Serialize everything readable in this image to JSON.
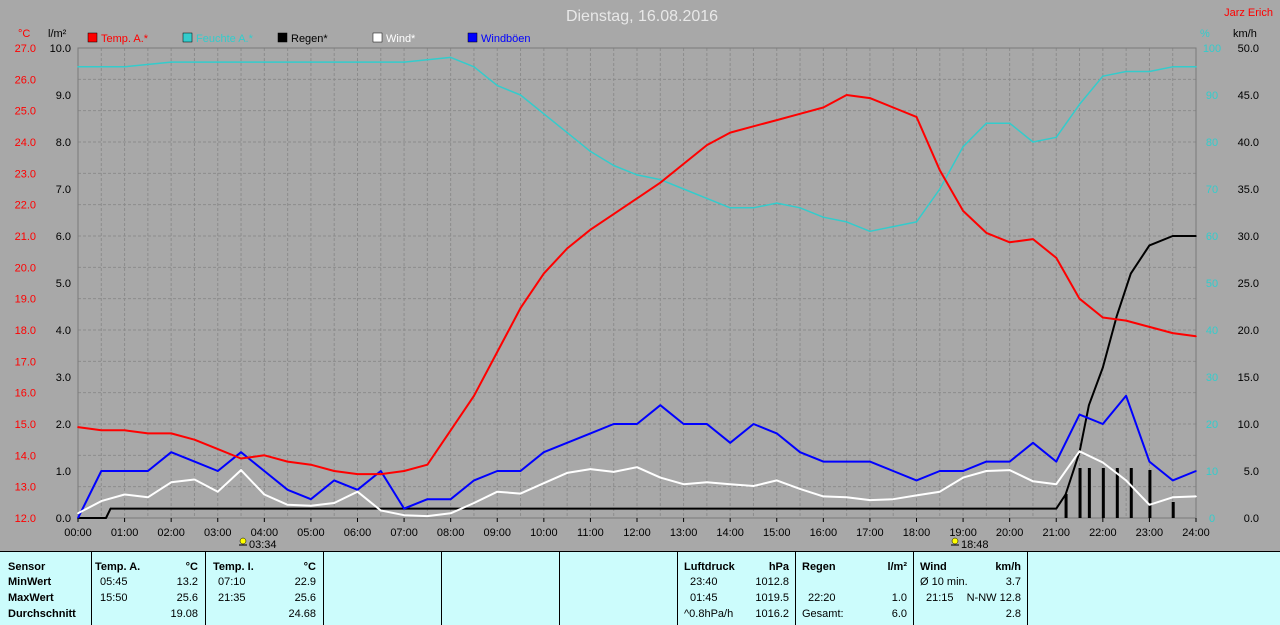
{
  "title": "Dienstag, 16.08.2016",
  "station": "Jarz Erich",
  "colors": {
    "background": "#a8a8a8",
    "grid": "#8c8c8c",
    "temperature": "#ff0000",
    "humidity": "#33cccc",
    "rain": "#000000",
    "wind": "#ffffff",
    "gusts": "#0000ff",
    "panel": "#ccfcfc"
  },
  "icons": {
    "sunrise": "sunrise-icon",
    "sunset": "sunset-icon"
  },
  "sunrise": {
    "time": "03:34",
    "hour": 3.57
  },
  "sunset": {
    "time": "18:48",
    "hour": 18.8
  },
  "chart_data": {
    "type": "line",
    "title": "Dienstag, 16.08.2016",
    "grid": true,
    "legend_position": "top-left",
    "x_ticks": [
      "00:00",
      "01:00",
      "02:00",
      "03:00",
      "04:00",
      "05:00",
      "06:00",
      "07:00",
      "08:00",
      "09:00",
      "10:00",
      "11:00",
      "12:00",
      "13:00",
      "14:00",
      "15:00",
      "16:00",
      "17:00",
      "18:00",
      "19:00",
      "20:00",
      "21:00",
      "22:00",
      "23:00",
      "24:00"
    ],
    "axes": {
      "temp": {
        "unit": "°C",
        "range": [
          12.0,
          27.0
        ],
        "ticks": [
          "12.0",
          "13.0",
          "14.0",
          "15.0",
          "16.0",
          "17.0",
          "18.0",
          "19.0",
          "20.0",
          "21.0",
          "22.0",
          "23.0",
          "24.0",
          "25.0",
          "26.0",
          "27.0"
        ]
      },
      "rain": {
        "unit": "l/m²",
        "range": [
          0.0,
          10.0
        ],
        "ticks": [
          "0.0",
          "1.0",
          "2.0",
          "3.0",
          "4.0",
          "5.0",
          "6.0",
          "7.0",
          "8.0",
          "9.0",
          "10.0"
        ]
      },
      "humidity": {
        "unit": "%",
        "range": [
          0,
          100
        ],
        "ticks": [
          "0",
          "10",
          "20",
          "30",
          "40",
          "50",
          "60",
          "70",
          "80",
          "90",
          "100"
        ]
      },
      "wind": {
        "unit": "km/h",
        "range": [
          0,
          50
        ],
        "ticks": [
          "0.0",
          "5.0",
          "10.0",
          "15.0",
          "20.0",
          "25.0",
          "30.0",
          "35.0",
          "40.0",
          "45.0",
          "50.0"
        ]
      }
    },
    "series": [
      {
        "name": "Temp. A.*",
        "axis": "temp",
        "color": "#ff0000",
        "x": [
          0,
          0.5,
          1,
          1.5,
          2,
          2.5,
          3,
          3.5,
          4,
          4.5,
          5,
          5.5,
          6,
          6.5,
          7,
          7.5,
          8,
          8.5,
          9,
          9.5,
          10,
          10.5,
          11,
          11.5,
          12,
          12.5,
          13,
          13.5,
          14,
          14.5,
          15,
          15.5,
          16,
          16.5,
          17,
          17.5,
          18,
          18.5,
          19,
          19.5,
          20,
          20.5,
          21,
          21.5,
          22,
          22.5,
          23,
          23.5,
          24
        ],
        "values": [
          14.9,
          14.8,
          14.8,
          14.7,
          14.7,
          14.5,
          14.2,
          13.9,
          14.0,
          13.8,
          13.7,
          13.5,
          13.4,
          13.4,
          13.5,
          13.7,
          14.8,
          15.9,
          17.3,
          18.7,
          19.8,
          20.6,
          21.2,
          21.7,
          22.2,
          22.7,
          23.3,
          23.9,
          24.3,
          24.5,
          24.7,
          24.9,
          25.1,
          25.5,
          25.4,
          25.1,
          24.8,
          23.1,
          21.8,
          21.1,
          20.8,
          20.9,
          20.3,
          19.0,
          18.4,
          18.3,
          18.1,
          17.9,
          17.8
        ]
      },
      {
        "name": "Feuchte A.*",
        "axis": "humidity",
        "color": "#33cccc",
        "x": [
          0,
          1,
          2,
          3,
          4,
          5,
          6,
          7,
          8,
          8.5,
          9,
          9.5,
          10,
          10.5,
          11,
          11.5,
          12,
          12.5,
          13,
          13.5,
          14,
          14.5,
          15,
          15.5,
          16,
          16.5,
          17,
          17.5,
          18,
          18.5,
          19,
          19.5,
          20,
          20.5,
          21,
          21.5,
          22,
          22.5,
          23,
          23.5,
          24
        ],
        "values": [
          96,
          96,
          97,
          97,
          97,
          97,
          97,
          97,
          98,
          96,
          92,
          90,
          86,
          82,
          78,
          75,
          73,
          72,
          70,
          68,
          66,
          66,
          67,
          66,
          64,
          63,
          61,
          62,
          63,
          70,
          79,
          84,
          84,
          80,
          81,
          88,
          94,
          95,
          95,
          96,
          96
        ]
      },
      {
        "name": "Regen*",
        "axis": "rain",
        "color": "#000000",
        "x": [
          0,
          0.6,
          0.7,
          21.0,
          21.2,
          21.5,
          21.7,
          22.0,
          22.3,
          22.6,
          23.0,
          23.5,
          24
        ],
        "values": [
          0,
          0,
          0.2,
          0.2,
          0.5,
          1.4,
          2.4,
          3.2,
          4.3,
          5.2,
          5.8,
          6.0,
          6.0
        ]
      },
      {
        "name": "Wind*",
        "axis": "wind",
        "color": "#ffffff",
        "x": [
          0,
          0.5,
          1,
          1.5,
          2,
          2.5,
          3,
          3.5,
          4,
          4.5,
          5,
          5.5,
          6,
          6.5,
          7,
          7.5,
          8,
          8.5,
          9,
          9.5,
          10,
          10.5,
          11,
          11.5,
          12,
          12.5,
          13,
          13.5,
          14,
          14.5,
          15,
          15.5,
          16,
          16.5,
          17,
          17.5,
          18,
          18.5,
          19,
          19.5,
          20,
          20.5,
          21,
          21.5,
          22,
          22.5,
          23,
          23.5,
          24
        ],
        "values": [
          0.5,
          1.8,
          2.5,
          2.2,
          3.8,
          4.1,
          2.8,
          5.1,
          2.5,
          1.4,
          1.3,
          1.6,
          2.8,
          0.8,
          0.3,
          0.2,
          0.5,
          1.6,
          2.8,
          2.6,
          3.7,
          4.8,
          5.2,
          4.9,
          5.4,
          4.3,
          3.6,
          3.8,
          3.6,
          3.4,
          4.0,
          3.1,
          2.3,
          2.2,
          1.9,
          2.0,
          2.4,
          2.8,
          4.3,
          5.0,
          5.1,
          3.9,
          3.6,
          7.1,
          5.9,
          4.0,
          1.4,
          2.2,
          2.3
        ]
      },
      {
        "name": "Windböen",
        "axis": "wind",
        "color": "#0000ff",
        "x": [
          0,
          0.5,
          1,
          1.5,
          2,
          2.5,
          3,
          3.5,
          4,
          4.5,
          5,
          5.5,
          6,
          6.5,
          7,
          7.5,
          8,
          8.5,
          9,
          9.5,
          10,
          10.5,
          11,
          11.5,
          12,
          12.5,
          13,
          13.5,
          14,
          14.5,
          15,
          15.5,
          16,
          16.5,
          17,
          17.5,
          18,
          18.5,
          19,
          19.5,
          20,
          20.5,
          21,
          21.5,
          22,
          22.5,
          23,
          23.5,
          24
        ],
        "values": [
          0,
          5,
          5,
          5,
          7,
          6,
          5,
          7,
          5,
          3,
          2,
          4,
          3,
          5,
          1,
          2,
          2,
          4,
          5,
          5,
          7,
          8,
          9,
          10,
          10,
          12,
          10,
          10,
          8,
          10,
          9,
          7,
          6,
          6,
          6,
          5,
          4,
          5,
          5,
          6,
          6,
          8,
          6,
          11,
          10,
          13,
          6,
          4,
          5
        ]
      }
    ]
  },
  "legend": [
    {
      "label": "Temp. A.*",
      "color": "#ff0000"
    },
    {
      "label": "Feuchte A.*",
      "color": "#33cccc"
    },
    {
      "label": "Regen*",
      "color": "#000000"
    },
    {
      "label": "Wind*",
      "color": "#ffffff"
    },
    {
      "label": "Windböen",
      "color": "#0000ff"
    }
  ],
  "panel": {
    "sensor": {
      "header": "Sensor",
      "rows": [
        "MinWert",
        "MaxWert",
        "Durchschnitt"
      ]
    },
    "temp_a": {
      "header": "Temp. A.",
      "unit": "°C",
      "min_time": "05:45",
      "min_val": "13.2",
      "max_time": "15:50",
      "max_val": "25.6",
      "avg": "19.08"
    },
    "temp_i": {
      "header": "Temp. I.",
      "unit": "°C",
      "min_time": "07:10",
      "min_val": "22.9",
      "max_time": "21:35",
      "max_val": "25.6",
      "avg": "24.68"
    },
    "pressure": {
      "header": "Luftdruck",
      "unit": "hPa",
      "min_time": "23:40",
      "min_val": "1012.8",
      "max_time": "01:45",
      "max_val": "1019.5",
      "trend_label": "^0.8hPa/h",
      "trend_val": "1016.2"
    },
    "rain": {
      "header": "Regen",
      "unit": "l/m²",
      "time": "22:20",
      "val": "1.0",
      "total_label": "Gesamt:",
      "total_val": "6.0"
    },
    "wind": {
      "header": "Wind",
      "unit": "km/h",
      "avg_label": "Ø 10 min.",
      "avg_val": "3.7",
      "max_time": "21:15",
      "max_val": "N-NW 12.8",
      "val3": "2.8"
    }
  }
}
